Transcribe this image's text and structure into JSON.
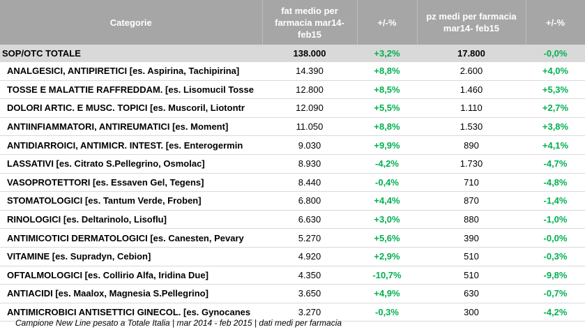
{
  "chart_data": {
    "type": "table",
    "columns": [
      "Categorie",
      "fat medio per farmacia mar14- feb15",
      "+/-%",
      "pz medi per farmacia mar14- feb15",
      "+/-%"
    ],
    "total": {
      "category": "SOP/OTC TOTALE",
      "fat": "138.000",
      "fat_var": "+3,2%",
      "pz": "17.800",
      "pz_var": "-0,0%"
    },
    "rows": [
      {
        "category": "ANALGESICI, ANTIPIRETICI [es. Aspirina, Tachipirina]",
        "fat": "14.390",
        "fat_var": "+8,8%",
        "pz": "2.600",
        "pz_var": "+4,0%"
      },
      {
        "category": "TOSSE E MALATTIE RAFFREDDAM. [es. Lisomucil Tosse",
        "fat": "12.800",
        "fat_var": "+8,5%",
        "pz": "1.460",
        "pz_var": "+5,3%"
      },
      {
        "category": "DOLORI ARTIC. E MUSC. TOPICI [es. Muscoril, Liotontr",
        "fat": "12.090",
        "fat_var": "+5,5%",
        "pz": "1.110",
        "pz_var": "+2,7%"
      },
      {
        "category": "ANTIINFIAMMATORI, ANTIREUMATICI [es. Moment]",
        "fat": "11.050",
        "fat_var": "+8,8%",
        "pz": "1.530",
        "pz_var": "+3,8%"
      },
      {
        "category": "ANTIDIARROICI, ANTIMICR. INTEST. [es. Enterogermin",
        "fat": "9.030",
        "fat_var": "+9,9%",
        "pz": "890",
        "pz_var": "+4,1%"
      },
      {
        "category": "LASSATIVI [es. Citrato S.Pellegrino, Osmolac]",
        "fat": "8.930",
        "fat_var": "-4,2%",
        "pz": "1.730",
        "pz_var": "-4,7%"
      },
      {
        "category": "VASOPROTETTORI [es. Essaven Gel, Tegens]",
        "fat": "8.440",
        "fat_var": "-0,4%",
        "pz": "710",
        "pz_var": "-4,8%"
      },
      {
        "category": "STOMATOLOGICI [es. Tantum Verde, Froben]",
        "fat": "6.800",
        "fat_var": "+4,4%",
        "pz": "870",
        "pz_var": "-1,4%"
      },
      {
        "category": "RINOLOGICI [es. Deltarinolo, Lisoflu]",
        "fat": "6.630",
        "fat_var": "+3,0%",
        "pz": "880",
        "pz_var": "-1,0%"
      },
      {
        "category": "ANTIMICOTICI DERMATOLOGICI [es. Canesten, Pevary",
        "fat": "5.270",
        "fat_var": "+5,6%",
        "pz": "390",
        "pz_var": "-0,0%"
      },
      {
        "category": "VITAMINE [es. Supradyn, Cebion]",
        "fat": "4.920",
        "fat_var": "+2,9%",
        "pz": "510",
        "pz_var": "-0,3%"
      },
      {
        "category": "OFTALMOLOGICI [es. Collirio Alfa, Iridina Due]",
        "fat": "4.350",
        "fat_var": "-10,7%",
        "pz": "510",
        "pz_var": "-9,8%"
      },
      {
        "category": "ANTIACIDI [es. Maalox, Magnesia S.Pellegrino]",
        "fat": "3.650",
        "fat_var": "+4,9%",
        "pz": "630",
        "pz_var": "-0,7%"
      },
      {
        "category": "ANTIMICROBICI ANTISETTICI GINECOL. [es. Gynocanes",
        "fat": "3.270",
        "fat_var": "-0,3%",
        "pz": "300",
        "pz_var": "-4,2%"
      }
    ],
    "footnote": "Campione New Line pesato a Totale Italia | mar 2014 - feb 2015 | dati medi per farmacia",
    "colors": {
      "header_bg": "#a6a6a6",
      "total_bg": "#d9d9d9",
      "variation": "#00b050"
    }
  }
}
